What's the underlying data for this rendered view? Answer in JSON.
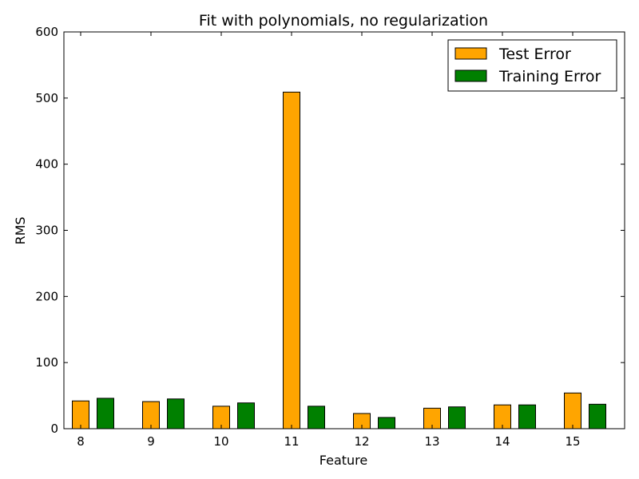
{
  "chart_data": {
    "type": "bar",
    "title": "Fit with polynomials, no regularization",
    "xlabel": "Feature",
    "ylabel": "RMS",
    "categories": [
      "8",
      "9",
      "10",
      "11",
      "12",
      "13",
      "14",
      "15"
    ],
    "series": [
      {
        "name": "Test Error",
        "color": "#ffa500",
        "values": [
          42,
          41,
          34,
          509,
          23,
          31,
          36,
          54
        ]
      },
      {
        "name": "Training Error",
        "color": "#008000",
        "values": [
          46,
          45,
          39,
          34,
          17,
          33,
          36,
          37
        ]
      }
    ],
    "ylim": [
      0,
      600
    ],
    "yticks": [
      0,
      100,
      200,
      300,
      400,
      500,
      600
    ],
    "grid": false,
    "legend_position": "top-right"
  }
}
